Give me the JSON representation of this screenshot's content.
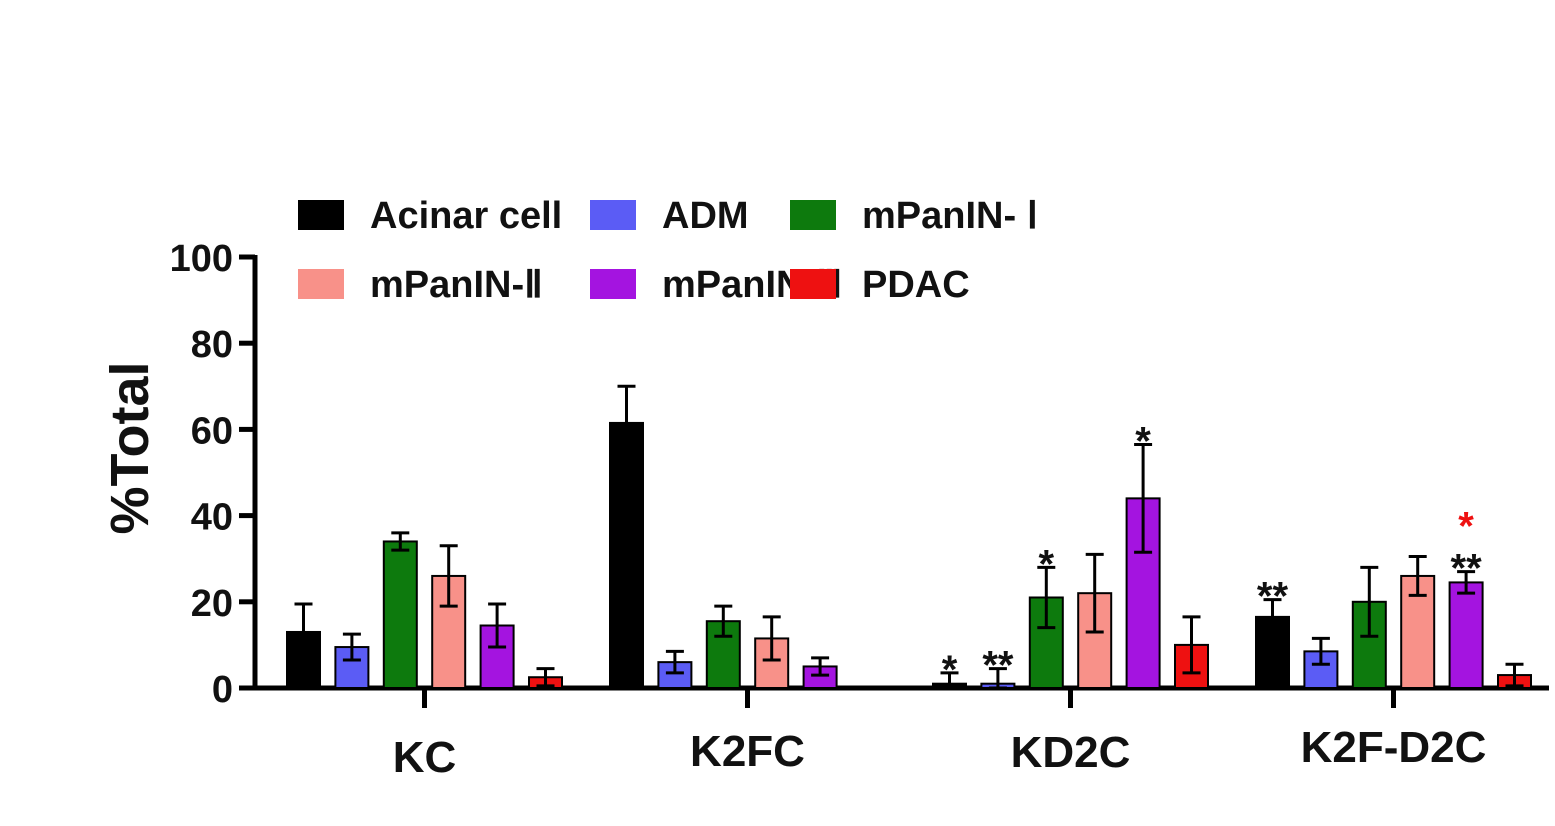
{
  "chart_data": {
    "type": "bar",
    "title": "",
    "xlabel": "",
    "ylabel": "%Total",
    "ylim": [
      0,
      100
    ],
    "yticks": [
      "0",
      "20",
      "40",
      "60",
      "80",
      "100"
    ],
    "grid": false,
    "legend_position": "top",
    "categories": [
      "KC",
      "K2FC",
      "KD2C",
      "K2F-D2C"
    ],
    "series": [
      {
        "name": "Acinar cell",
        "color": "#000000",
        "values": [
          13,
          61.5,
          1,
          16.5
        ],
        "errors": [
          6.5,
          8.5,
          2.5,
          4
        ]
      },
      {
        "name": "ADM",
        "color": "#5b5cf5",
        "values": [
          9.5,
          6,
          1,
          8.5
        ],
        "errors": [
          3,
          2.5,
          3.5,
          3
        ]
      },
      {
        "name": "mPanIN- Ⅰ",
        "color": "#0d7a0d",
        "values": [
          34,
          15.5,
          21,
          20
        ],
        "errors": [
          2,
          3.5,
          7,
          8
        ]
      },
      {
        "name": "mPanIN-Ⅱ",
        "color": "#f89189",
        "values": [
          26,
          11.5,
          22,
          26
        ],
        "errors": [
          7,
          5,
          9,
          4.5
        ]
      },
      {
        "name": "mPanIN-Ⅲ",
        "color": "#a414e0",
        "values": [
          14.5,
          5,
          44,
          24.5
        ],
        "errors": [
          5,
          2,
          12.5,
          2.5
        ]
      },
      {
        "name": "PDAC",
        "color": "#ee1111",
        "values": [
          2.5,
          0,
          10,
          3
        ],
        "errors": [
          2,
          0,
          6.5,
          2.5
        ]
      }
    ],
    "annotations": [
      {
        "category": "KD2C",
        "series": "Acinar cell",
        "text": "*",
        "color": "#111111"
      },
      {
        "category": "KD2C",
        "series": "ADM",
        "text": "**",
        "color": "#111111"
      },
      {
        "category": "KD2C",
        "series": "mPanIN- Ⅰ",
        "text": "*",
        "color": "#111111"
      },
      {
        "category": "KD2C",
        "series": "mPanIN-Ⅲ",
        "text": "*",
        "color": "#111111"
      },
      {
        "category": "K2F-D2C",
        "series": "Acinar cell",
        "text": "**",
        "color": "#111111"
      },
      {
        "category": "K2F-D2C",
        "series": "mPanIN-Ⅲ",
        "text": "**",
        "color": "#111111"
      },
      {
        "category": "K2F-D2C",
        "series": "mPanIN-Ⅲ",
        "text": "*",
        "color": "#ee1111"
      }
    ]
  }
}
